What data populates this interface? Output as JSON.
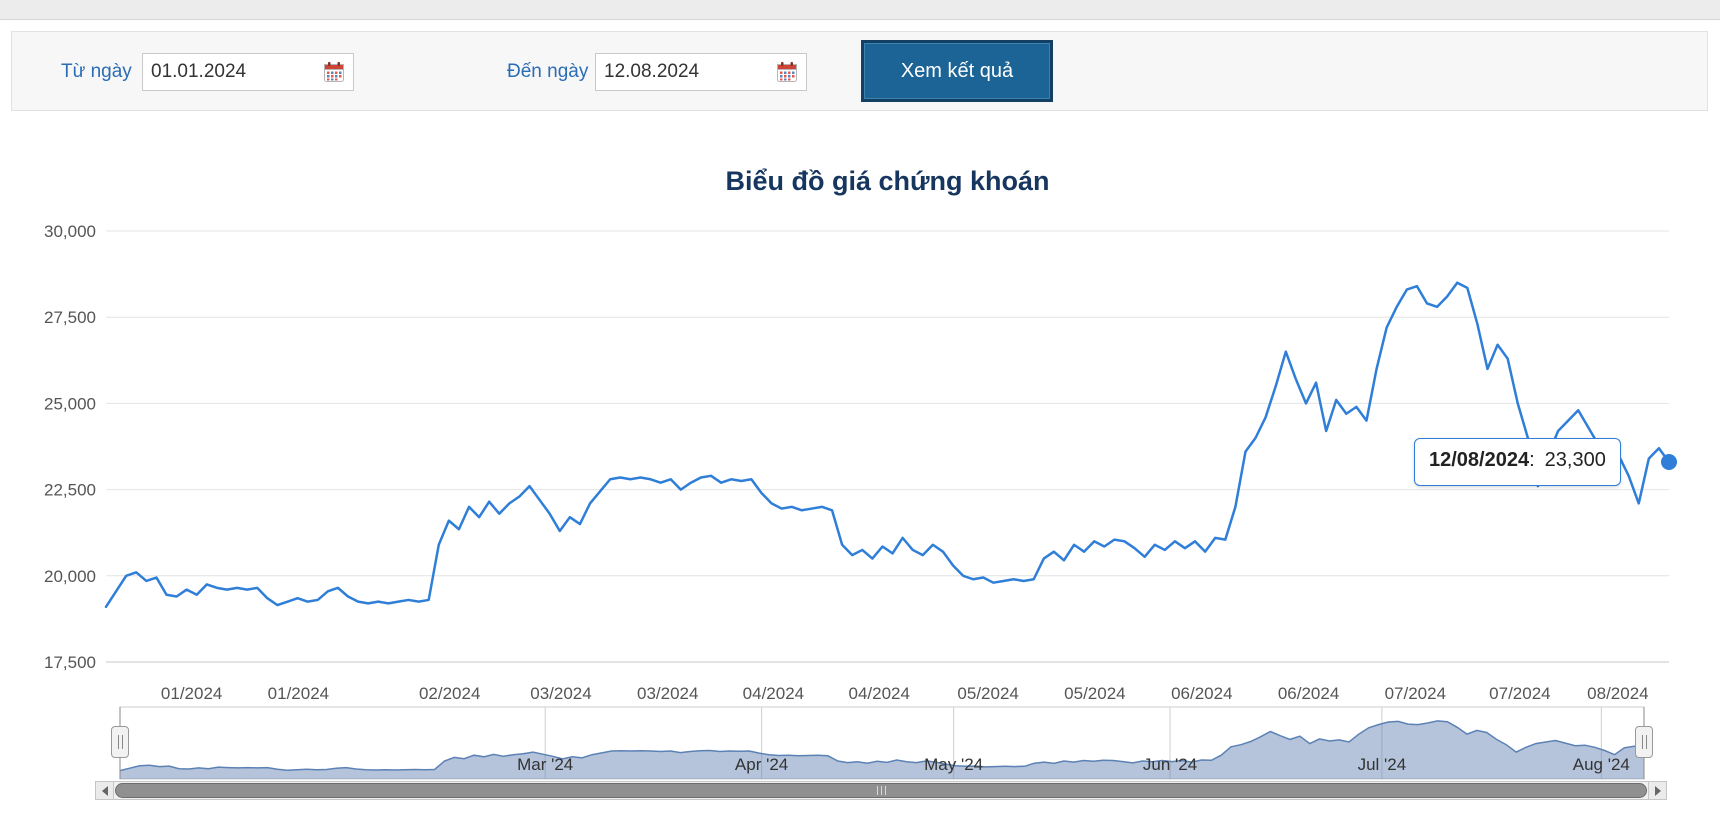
{
  "filter": {
    "from_label": "Từ ngày",
    "from_value": "01.01.2024",
    "to_label": "Đến ngày",
    "to_value": "12.08.2024",
    "submit_label": "Xem kết quả",
    "label_color": "#2a6db4",
    "button_color": "#1c6496"
  },
  "chart_data": {
    "type": "line",
    "title": "Biểu đồ giá chứng khoán",
    "ylabel": "",
    "xlabel": "",
    "ylim": [
      17500,
      30000
    ],
    "grid": true,
    "y_ticks": [
      {
        "value": 30000,
        "label": "30,000"
      },
      {
        "value": 27500,
        "label": "27,500"
      },
      {
        "value": 25000,
        "label": "25,000"
      },
      {
        "value": 22500,
        "label": "22,500"
      },
      {
        "value": 20000,
        "label": "20,000"
      },
      {
        "value": 17500,
        "label": "17,500"
      }
    ],
    "x_ticks": [
      {
        "label": "01/2024",
        "pos": 0.0548
      },
      {
        "label": "01/2024",
        "pos": 0.1231
      },
      {
        "label": "02/2024",
        "pos": 0.2199
      },
      {
        "label": "03/2024",
        "pos": 0.2911
      },
      {
        "label": "03/2024",
        "pos": 0.3594
      },
      {
        "label": "04/2024",
        "pos": 0.427
      },
      {
        "label": "04/2024",
        "pos": 0.4947
      },
      {
        "label": "05/2024",
        "pos": 0.5644
      },
      {
        "label": "05/2024",
        "pos": 0.6327
      },
      {
        "label": "06/2024",
        "pos": 0.7011
      },
      {
        "label": "06/2024",
        "pos": 0.7694
      },
      {
        "label": "07/2024",
        "pos": 0.8377
      },
      {
        "label": "07/2024",
        "pos": 0.9046
      },
      {
        "label": "08/2024",
        "pos": 0.9673
      }
    ],
    "series": [
      {
        "name": "price",
        "values": [
          19100,
          19550,
          20000,
          20100,
          19850,
          19950,
          19450,
          19400,
          19600,
          19450,
          19750,
          19650,
          19600,
          19650,
          19600,
          19650,
          19350,
          19150,
          19250,
          19350,
          19250,
          19300,
          19550,
          19650,
          19400,
          19250,
          19200,
          19250,
          19200,
          19250,
          19300,
          19250,
          19300,
          20900,
          21600,
          21350,
          22000,
          21700,
          22150,
          21800,
          22100,
          22300,
          22600,
          22200,
          21800,
          21300,
          21700,
          21500,
          22100,
          22450,
          22800,
          22850,
          22800,
          22850,
          22800,
          22700,
          22800,
          22500,
          22700,
          22850,
          22900,
          22700,
          22800,
          22750,
          22800,
          22400,
          22100,
          21950,
          22000,
          21900,
          21950,
          22000,
          21900,
          20900,
          20600,
          20750,
          20500,
          20850,
          20650,
          21100,
          20750,
          20600,
          20900,
          20700,
          20300,
          20000,
          19900,
          19950,
          19800,
          19850,
          19900,
          19850,
          19900,
          20500,
          20700,
          20450,
          20900,
          20700,
          21000,
          20850,
          21050,
          21000,
          20800,
          20550,
          20900,
          20750,
          21000,
          20800,
          21000,
          20700,
          21100,
          21050,
          22000,
          23600,
          24000,
          24600,
          25500,
          26500,
          25700,
          25000,
          25600,
          24200,
          25100,
          24700,
          24900,
          24500,
          26000,
          27200,
          27800,
          28300,
          28400,
          27900,
          27800,
          28100,
          28500,
          28350,
          27300,
          26000,
          26700,
          26300,
          25000,
          24000,
          22600,
          23500,
          24200,
          24500,
          24800,
          24300,
          23800,
          23900,
          23500,
          22900,
          22100,
          23400,
          23700,
          23300
        ]
      }
    ],
    "tooltip": {
      "label": "12/08/2024",
      "separator": ":",
      "value": "23,300"
    },
    "last_point": {
      "date": "12/08/2024",
      "value": 23300
    },
    "navigator": {
      "x_ticks": [
        {
          "label": "Mar '24",
          "pos": 0.279
        },
        {
          "label": "Apr '24",
          "pos": 0.421
        },
        {
          "label": "May '24",
          "pos": 0.547
        },
        {
          "label": "Jun '24",
          "pos": 0.689
        },
        {
          "label": "Jul '24",
          "pos": 0.828
        },
        {
          "label": "Aug '24",
          "pos": 0.972
        }
      ]
    },
    "legend": "none",
    "colors": {
      "line": "#2f7ed8",
      "title": "#16365f",
      "axis_label": "#555555",
      "grid": "#e4e4e4",
      "axis_line": "#c9c9c9",
      "nav_fill": "rgba(91,125,176,0.45)",
      "nav_line": "#5c82b5"
    }
  }
}
